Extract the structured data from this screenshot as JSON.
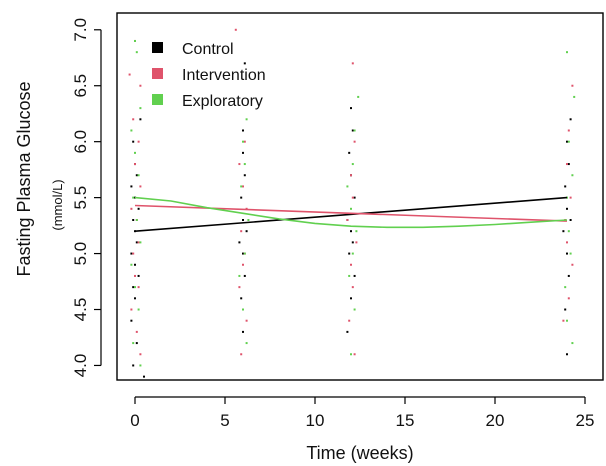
{
  "chart_data": {
    "type": "scatter",
    "xlabel": "Time (weeks)",
    "ylabel": "Fasting Plasma Glucose",
    "ylabel_unit": "(mmol/L)",
    "xlim": [
      -1,
      26
    ],
    "ylim": [
      3.87,
      7.15
    ],
    "x_ticks": [
      0,
      5,
      10,
      15,
      20,
      25
    ],
    "y_ticks": [
      4.0,
      4.5,
      5.0,
      5.5,
      6.0,
      6.5,
      7.0
    ],
    "grid": false,
    "legend_position": "top-left",
    "series": [
      {
        "name": "Control",
        "color": "#000000",
        "trend": [
          [
            0,
            5.2
          ],
          [
            24,
            5.5
          ]
        ],
        "points": [
          [
            -0.1,
            4.0
          ],
          [
            0.1,
            4.2
          ],
          [
            -0.2,
            4.4
          ],
          [
            0.0,
            4.6
          ],
          [
            -0.1,
            4.7
          ],
          [
            0.2,
            4.8
          ],
          [
            0.0,
            4.9
          ],
          [
            -0.2,
            5.0
          ],
          [
            0.1,
            5.1
          ],
          [
            0.0,
            5.2
          ],
          [
            -0.1,
            5.3
          ],
          [
            0.2,
            5.4
          ],
          [
            0.0,
            5.5
          ],
          [
            -0.2,
            5.6
          ],
          [
            0.1,
            5.7
          ],
          [
            0.0,
            5.8
          ],
          [
            -0.1,
            6.0
          ],
          [
            0.3,
            6.2
          ],
          [
            0.5,
            3.9
          ],
          [
            6.0,
            4.3
          ],
          [
            5.9,
            4.6
          ],
          [
            6.1,
            4.8
          ],
          [
            6.0,
            5.0
          ],
          [
            5.8,
            5.1
          ],
          [
            6.2,
            5.2
          ],
          [
            6.0,
            5.3
          ],
          [
            5.9,
            5.5
          ],
          [
            6.1,
            5.7
          ],
          [
            6.0,
            5.9
          ],
          [
            6.0,
            6.1
          ],
          [
            6.1,
            6.7
          ],
          [
            11.8,
            4.3
          ],
          [
            12.0,
            4.6
          ],
          [
            12.2,
            4.8
          ],
          [
            11.9,
            5.0
          ],
          [
            12.1,
            5.1
          ],
          [
            12.0,
            5.2
          ],
          [
            11.8,
            5.3
          ],
          [
            12.2,
            5.5
          ],
          [
            12.0,
            5.7
          ],
          [
            11.9,
            5.9
          ],
          [
            12.1,
            6.1
          ],
          [
            12.0,
            6.3
          ],
          [
            24.0,
            4.1
          ],
          [
            23.9,
            4.5
          ],
          [
            24.1,
            4.8
          ],
          [
            24.0,
            5.0
          ],
          [
            23.8,
            5.2
          ],
          [
            24.2,
            5.3
          ],
          [
            24.0,
            5.4
          ],
          [
            23.9,
            5.6
          ],
          [
            24.1,
            5.8
          ],
          [
            24.0,
            6.0
          ],
          [
            24.2,
            6.2
          ]
        ]
      },
      {
        "name": "Intervention",
        "color": "#df536b",
        "trend": [
          [
            0,
            5.43
          ],
          [
            24,
            5.29
          ]
        ],
        "points": [
          [
            0.3,
            4.1
          ],
          [
            0.1,
            4.3
          ],
          [
            -0.2,
            4.5
          ],
          [
            0.2,
            4.7
          ],
          [
            0.0,
            4.8
          ],
          [
            -0.1,
            5.0
          ],
          [
            0.2,
            5.1
          ],
          [
            0.1,
            5.3
          ],
          [
            -0.2,
            5.4
          ],
          [
            0.3,
            5.6
          ],
          [
            0.0,
            5.8
          ],
          [
            0.2,
            6.0
          ],
          [
            -0.1,
            6.2
          ],
          [
            0.3,
            6.5
          ],
          [
            -0.3,
            6.6
          ],
          [
            0.0,
            6.9
          ],
          [
            5.6,
            7.0
          ],
          [
            5.9,
            4.1
          ],
          [
            6.2,
            4.4
          ],
          [
            5.8,
            4.7
          ],
          [
            6.0,
            4.9
          ],
          [
            6.1,
            5.0
          ],
          [
            5.9,
            5.2
          ],
          [
            6.2,
            5.4
          ],
          [
            6.0,
            5.6
          ],
          [
            5.8,
            5.8
          ],
          [
            6.1,
            6.0
          ],
          [
            12.2,
            4.1
          ],
          [
            11.9,
            4.4
          ],
          [
            12.1,
            4.7
          ],
          [
            12.0,
            4.9
          ],
          [
            12.3,
            5.1
          ],
          [
            11.8,
            5.3
          ],
          [
            12.1,
            5.5
          ],
          [
            12.0,
            5.7
          ],
          [
            12.2,
            6.0
          ],
          [
            12.1,
            6.7
          ],
          [
            23.8,
            4.4
          ],
          [
            24.1,
            4.6
          ],
          [
            24.3,
            4.9
          ],
          [
            24.0,
            5.1
          ],
          [
            23.9,
            5.3
          ],
          [
            24.2,
            5.5
          ],
          [
            24.0,
            5.8
          ],
          [
            24.1,
            6.1
          ],
          [
            24.3,
            6.5
          ]
        ]
      },
      {
        "name": "Exploratory",
        "color": "#61d04f",
        "trend": [
          [
            0,
            5.5
          ],
          [
            2,
            5.47
          ],
          [
            4,
            5.41
          ],
          [
            6,
            5.36
          ],
          [
            8,
            5.31
          ],
          [
            10,
            5.27
          ],
          [
            12,
            5.245
          ],
          [
            14,
            5.235
          ],
          [
            16,
            5.235
          ],
          [
            18,
            5.245
          ],
          [
            20,
            5.26
          ],
          [
            22,
            5.28
          ],
          [
            24,
            5.3
          ]
        ],
        "points": [
          [
            0.3,
            4.0
          ],
          [
            -0.1,
            4.2
          ],
          [
            0.2,
            4.5
          ],
          [
            0.0,
            4.7
          ],
          [
            -0.2,
            4.9
          ],
          [
            0.3,
            5.1
          ],
          [
            0.1,
            5.3
          ],
          [
            -0.1,
            5.5
          ],
          [
            0.2,
            5.7
          ],
          [
            0.0,
            5.9
          ],
          [
            -0.2,
            6.1
          ],
          [
            0.3,
            6.3
          ],
          [
            0.1,
            6.8
          ],
          [
            0.0,
            6.9
          ],
          [
            6.2,
            4.2
          ],
          [
            6.0,
            4.5
          ],
          [
            5.8,
            4.8
          ],
          [
            6.1,
            5.0
          ],
          [
            6.3,
            5.3
          ],
          [
            5.9,
            5.6
          ],
          [
            6.1,
            5.8
          ],
          [
            6.0,
            6.0
          ],
          [
            6.2,
            6.2
          ],
          [
            12.0,
            4.1
          ],
          [
            12.2,
            4.5
          ],
          [
            11.9,
            4.8
          ],
          [
            12.1,
            5.0
          ],
          [
            12.3,
            5.2
          ],
          [
            12.0,
            5.4
          ],
          [
            11.8,
            5.6
          ],
          [
            12.1,
            5.8
          ],
          [
            12.2,
            6.1
          ],
          [
            12.4,
            6.4
          ],
          [
            24.3,
            4.2
          ],
          [
            24.0,
            4.4
          ],
          [
            23.9,
            4.7
          ],
          [
            24.2,
            5.0
          ],
          [
            24.1,
            5.2
          ],
          [
            24.0,
            5.5
          ],
          [
            24.3,
            5.7
          ],
          [
            24.1,
            6.0
          ],
          [
            24.4,
            6.4
          ],
          [
            24.0,
            6.8
          ]
        ]
      }
    ]
  }
}
